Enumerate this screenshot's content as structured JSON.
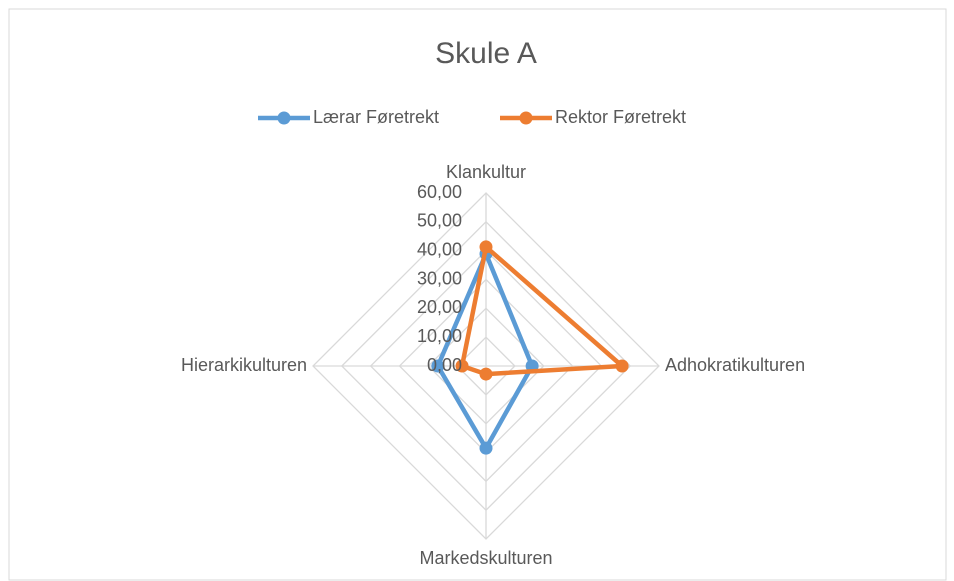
{
  "chart_data": {
    "type": "radar",
    "title": "Skule A",
    "categories": [
      "Klankultur",
      "Adhokratikulturen",
      "Markedskulturen",
      "Hierarkikulturen"
    ],
    "series": [
      {
        "name": "Lærar Føretrekt",
        "color": "#5b9bd5",
        "values": [
          38.9,
          16,
          28.5,
          16.7
        ]
      },
      {
        "name": "Rektor Føretrekt",
        "color": "#ed7d31",
        "values": [
          41.3,
          47.2,
          2.8,
          8.3
        ]
      }
    ],
    "ylim": [
      0,
      60
    ],
    "yticks": [
      {
        "value": 0,
        "label": "0,00"
      },
      {
        "value": 10,
        "label": "10,00"
      },
      {
        "value": 20,
        "label": "20,00"
      },
      {
        "value": 30,
        "label": "30,00"
      },
      {
        "value": 40,
        "label": "40,00"
      },
      {
        "value": 50,
        "label": "50,00"
      },
      {
        "value": 60,
        "label": "60,00"
      }
    ],
    "grid": true,
    "legend": "top"
  }
}
